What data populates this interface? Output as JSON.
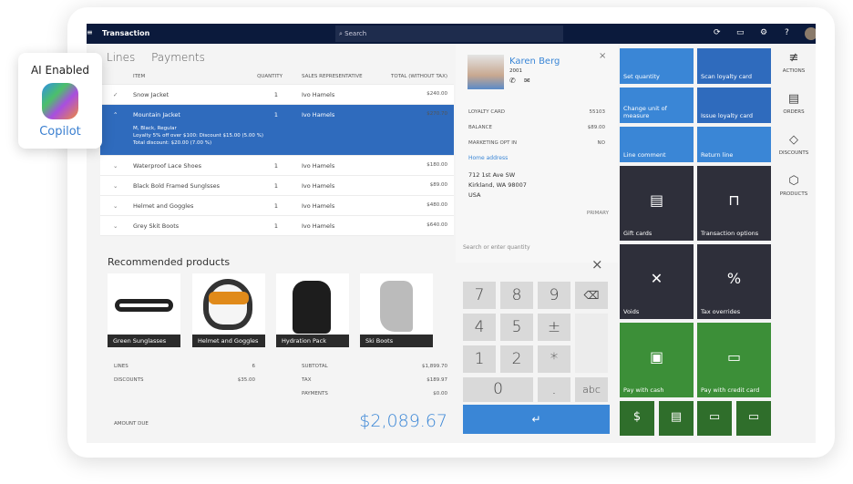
{
  "badge": {
    "title": "AI Enabled",
    "name": "Copilot"
  },
  "topbar": {
    "title": "Transaction",
    "search_placeholder": "Search"
  },
  "tabs": [
    "Lines",
    "Payments"
  ],
  "table": {
    "headers": [
      "ITEM",
      "QUANTITY",
      "SALES REPRESENTATIVE",
      "TOTAL (WITHOUT TAX)"
    ],
    "rows": [
      {
        "item": "Snow Jacket",
        "qty": "1",
        "rep": "Ivo Hamels",
        "total": "$240.00"
      },
      {
        "item": "Mountain Jacket",
        "qty": "1",
        "rep": "Ivo Hamels",
        "total": "$270.70",
        "details": [
          "M, Black, Regular",
          "Loyalty 5% off over $100: Discount $15.00 (5.00 %)",
          "Total discount: $20.00 (7.00 %)"
        ]
      },
      {
        "item": "Waterproof Lace Shoes",
        "qty": "1",
        "rep": "Ivo Hamels",
        "total": "$180.00"
      },
      {
        "item": "Black Bold Framed Sunglsses",
        "qty": "1",
        "rep": "Ivo Hamels",
        "total": "$89.00"
      },
      {
        "item": "Helmet and Goggles",
        "qty": "1",
        "rep": "Ivo Hamels",
        "total": "$480.00"
      },
      {
        "item": "Grey Skit Boots",
        "qty": "1",
        "rep": "Ivo Hamels",
        "total": "$640.00"
      }
    ]
  },
  "recommended": {
    "title": "Recommended products",
    "items": [
      "Green Sunglasses",
      "Helmet and Goggles",
      "Hydration Pack",
      "Ski Boots"
    ]
  },
  "totals": {
    "lines_label": "LINES",
    "lines": "6",
    "discounts_label": "DISCOUNTS",
    "discounts": "$35.00",
    "subtotal_label": "SUBTOTAL",
    "subtotal": "$1,899.70",
    "tax_label": "TAX",
    "tax": "$189.97",
    "payments_label": "PAYMENTS",
    "payments": "$0.00",
    "amount_due_label": "AMOUNT DUE",
    "amount_due": "$2,089.67"
  },
  "customer": {
    "name": "Karen Berg",
    "id": "2001",
    "loyalty_label": "LOYALTY CARD",
    "loyalty": "55103",
    "balance_label": "BALANCE",
    "balance": "$89.00",
    "marketing_label": "MARKETING OPT IN",
    "marketing": "NO",
    "address_title": "Home address",
    "address": [
      "712 1st Ave SW",
      "Kirkland, WA 98007",
      "USA"
    ],
    "address_type": "PRIMARY"
  },
  "numpad": {
    "placeholder": "Search or enter quantity",
    "keys": [
      "7",
      "8",
      "9",
      "⌫",
      "4",
      "5",
      "±",
      "1",
      "2",
      "*",
      "0",
      ".",
      "abc"
    ],
    "enter": "↵"
  },
  "tiles": [
    "Set quantity",
    "Scan loyalty card",
    "Change unit of measure",
    "Issue loyalty card",
    "Line comment",
    "Return line",
    "Gift cards",
    "Transaction options",
    "Voids",
    "Tax overrides",
    "Pay with cash",
    "Pay with credit card"
  ],
  "nav": [
    "ACTIONS",
    "ORDERS",
    "DISCOUNTS",
    "PRODUCTS"
  ],
  "colors": {
    "topbar": "#0b1a3c",
    "selected": "#2f6bbd",
    "tile_blue": "#3a86d6",
    "tile_dark": "#2e2f3a",
    "tile_green": "#3c8f38",
    "amount_due": "#3a86d6"
  }
}
